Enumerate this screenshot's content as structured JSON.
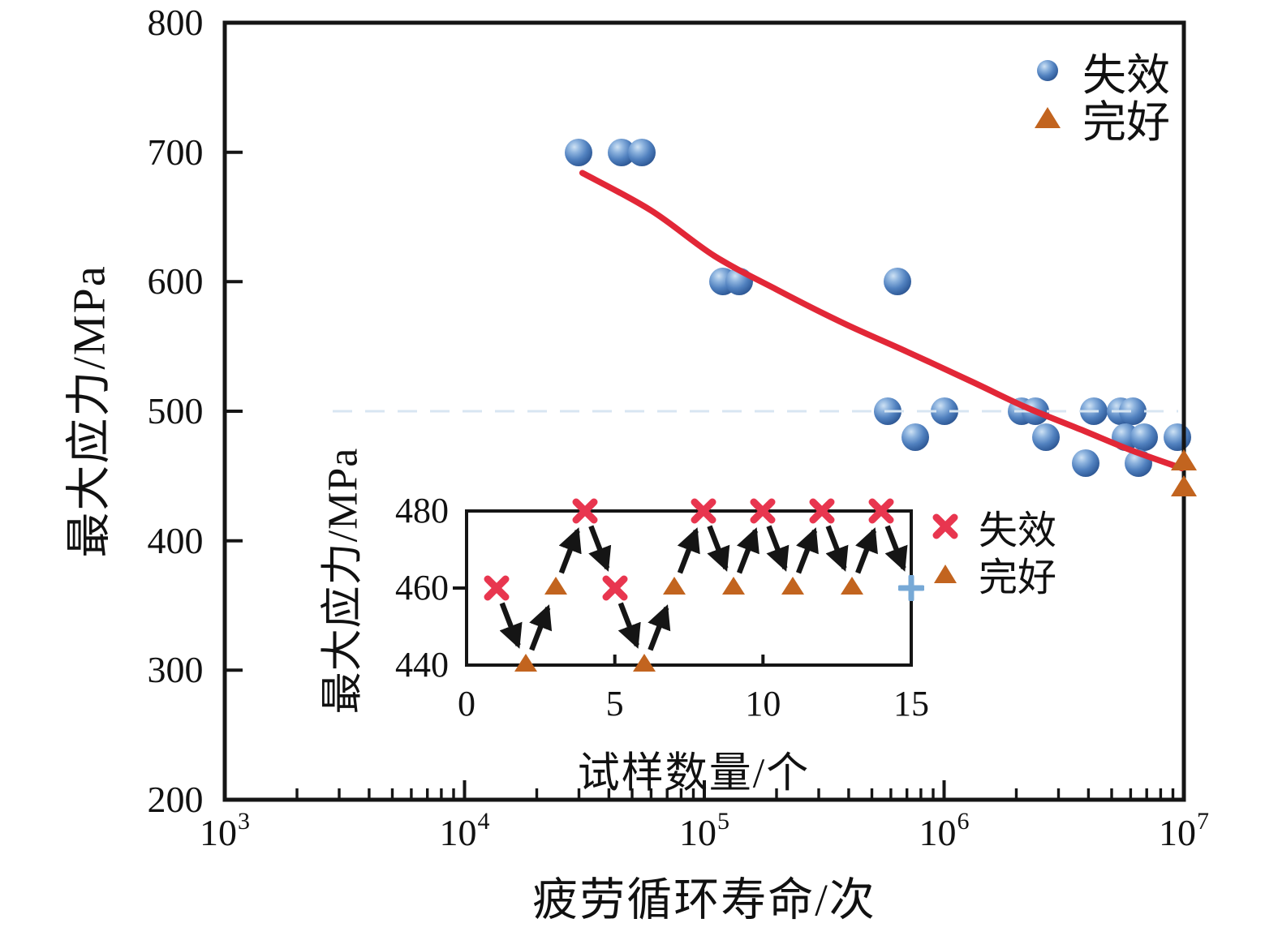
{
  "figure": {
    "main": {
      "xlabel": "疲劳循环寿命/次",
      "ylabel": "最大应力/MPa",
      "x_ticks": [
        {
          "base": "10",
          "exp": "3"
        },
        {
          "base": "10",
          "exp": "4"
        },
        {
          "base": "10",
          "exp": "5"
        },
        {
          "base": "10",
          "exp": "6"
        },
        {
          "base": "10",
          "exp": "7"
        }
      ],
      "y_ticks": [
        "800",
        "700",
        "600",
        "500",
        "400",
        "300",
        "200"
      ],
      "legend": [
        {
          "marker": "sphere",
          "label": "失效"
        },
        {
          "marker": "triangle",
          "label": "完好"
        }
      ]
    },
    "inset": {
      "xlabel": "试样数量/个",
      "ylabel": "最大应力/MPa",
      "x_ticks": [
        "0",
        "5",
        "10",
        "15"
      ],
      "y_ticks": [
        "480",
        "460",
        "440"
      ],
      "legend": [
        {
          "marker": "x",
          "label": "失效"
        },
        {
          "marker": "triangle",
          "label": "完好"
        }
      ]
    }
  },
  "chart_data": [
    {
      "id": "main",
      "type": "scatter",
      "title": "",
      "xlabel": "疲劳循环寿命/次",
      "ylabel": "最大应力/MPa",
      "x_scale": "log",
      "xlim": [
        1000,
        10000000
      ],
      "ylim": [
        200,
        800
      ],
      "x_tick_values": [
        1000,
        10000,
        100000,
        1000000,
        10000000
      ],
      "y_tick_values": [
        200,
        300,
        400,
        500,
        600,
        700,
        800
      ],
      "grid": false,
      "legend_position": "top-right",
      "series": [
        {
          "name": "失效",
          "marker": "sphere",
          "color": "#3a67ad",
          "points": [
            [
              30000,
              700
            ],
            [
              45000,
              700
            ],
            [
              55000,
              700
            ],
            [
              120000,
              600
            ],
            [
              140000,
              600
            ],
            [
              640000,
              600
            ],
            [
              580000,
              500
            ],
            [
              1000000,
              500
            ],
            [
              2100000,
              500
            ],
            [
              2400000,
              500
            ],
            [
              4200000,
              500
            ],
            [
              5450000,
              500
            ],
            [
              6100000,
              500
            ],
            [
              760000,
              480
            ],
            [
              2650000,
              480
            ],
            [
              5700000,
              480
            ],
            [
              6800000,
              480
            ],
            [
              9400000,
              480
            ],
            [
              3900000,
              460
            ],
            [
              6450000,
              460
            ]
          ]
        },
        {
          "name": "完好",
          "marker": "triangle",
          "color": "#c2641f",
          "points": [
            [
              10000000,
              460
            ],
            [
              10000000,
              440
            ]
          ]
        }
      ],
      "fit_curve": {
        "color": "#e22737",
        "points": [
          [
            31000,
            684
          ],
          [
            60000,
            655
          ],
          [
            110000,
            620
          ],
          [
            200000,
            594
          ],
          [
            380000,
            568
          ],
          [
            700000,
            546
          ],
          [
            1300000,
            523
          ],
          [
            2200000,
            503
          ],
          [
            3700000,
            486
          ],
          [
            6000000,
            470
          ],
          [
            9800000,
            456
          ]
        ]
      }
    },
    {
      "id": "inset",
      "type": "scatter",
      "title": "",
      "xlabel": "试样数量/个",
      "ylabel": "最大应力/MPa",
      "xlim": [
        0,
        15
      ],
      "ylim": [
        440,
        480
      ],
      "x_tick_values": [
        0,
        5,
        10,
        15
      ],
      "y_tick_values": [
        440,
        460,
        480
      ],
      "grid": false,
      "legend_position": "right",
      "sequence": [
        {
          "n": 1,
          "stress": 460,
          "marker": "x",
          "result": "失效"
        },
        {
          "n": 2,
          "stress": 440,
          "marker": "triangle",
          "result": "完好"
        },
        {
          "n": 3,
          "stress": 460,
          "marker": "triangle",
          "result": "完好"
        },
        {
          "n": 4,
          "stress": 480,
          "marker": "x",
          "result": "失效"
        },
        {
          "n": 5,
          "stress": 460,
          "marker": "x",
          "result": "失效"
        },
        {
          "n": 6,
          "stress": 440,
          "marker": "triangle",
          "result": "完好"
        },
        {
          "n": 7,
          "stress": 460,
          "marker": "triangle",
          "result": "完好"
        },
        {
          "n": 8,
          "stress": 480,
          "marker": "x",
          "result": "失效"
        },
        {
          "n": 9,
          "stress": 460,
          "marker": "triangle",
          "result": "完好"
        },
        {
          "n": 10,
          "stress": 480,
          "marker": "x",
          "result": "失效"
        },
        {
          "n": 11,
          "stress": 460,
          "marker": "triangle",
          "result": "完好"
        },
        {
          "n": 12,
          "stress": 480,
          "marker": "x",
          "result": "失效"
        },
        {
          "n": 13,
          "stress": 460,
          "marker": "triangle",
          "result": "完好"
        },
        {
          "n": 14,
          "stress": 480,
          "marker": "x",
          "result": "失效"
        },
        {
          "n": 15,
          "stress": 460,
          "marker": "plus"
        }
      ],
      "arrows_between_consecutive_points": true
    }
  ],
  "colors": {
    "sphere_blue": "#3a67ad",
    "triangle_orange": "#c2641f",
    "curve_red": "#e22737",
    "x_red": "#e8364f",
    "plus_blue": "#77a9d6",
    "axis_black": "#151515",
    "faint_artifact_blue": "#d8e6f2"
  }
}
